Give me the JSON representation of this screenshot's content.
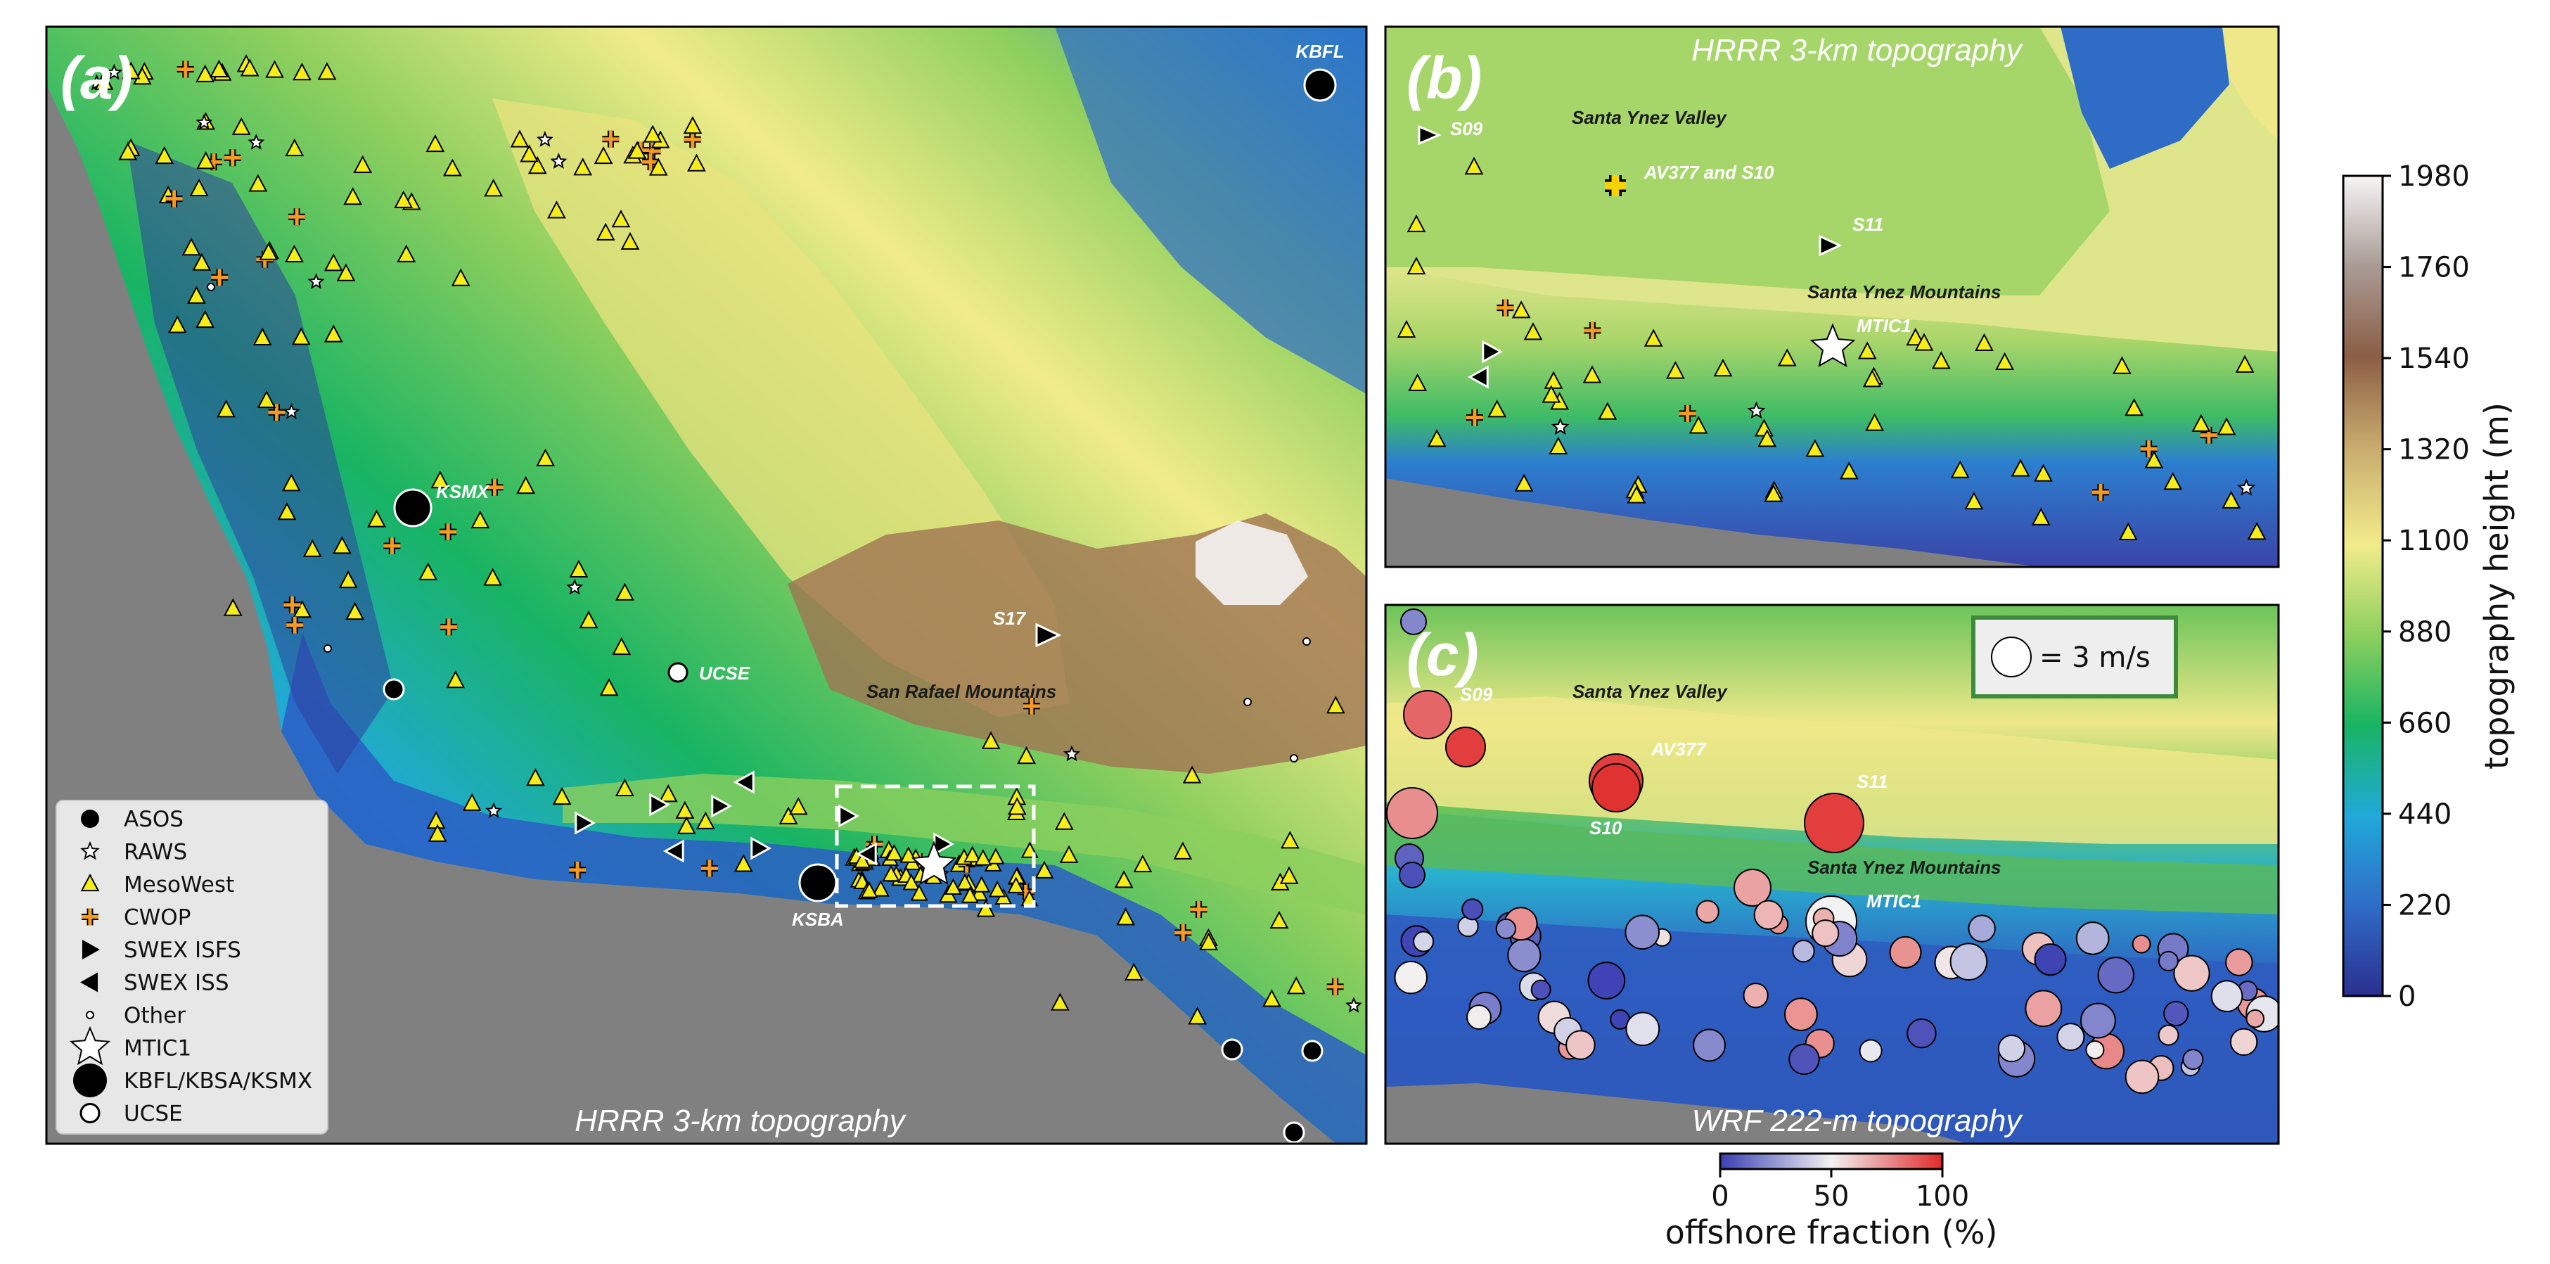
{
  "panels": {
    "a": {
      "letter": "(a)",
      "caption": "HRRR 3-km topography",
      "labels": {
        "kbfl": "KBFL",
        "ksmx": "KSMX",
        "ksba": "KSBA",
        "ucse": "UCSE",
        "s17": "S17",
        "san_rafael": "San Rafael Mountains"
      },
      "legend": [
        {
          "symbol": "circle-black",
          "label": "ASOS"
        },
        {
          "symbol": "star-small",
          "label": "RAWS"
        },
        {
          "symbol": "triangle-yellow",
          "label": "MesoWest"
        },
        {
          "symbol": "plus-orange",
          "label": "CWOP"
        },
        {
          "symbol": "triangle-right",
          "label": "SWEX ISFS"
        },
        {
          "symbol": "triangle-left",
          "label": "SWEX ISS"
        },
        {
          "symbol": "circle-small",
          "label": "Other"
        },
        {
          "symbol": "star-large",
          "label": "MTIC1"
        },
        {
          "symbol": "circle-large",
          "label": "KBFL/KBSA/KSMX"
        },
        {
          "symbol": "circle-white",
          "label": "UCSE"
        }
      ]
    },
    "b": {
      "letter": "(b)",
      "caption": "HRRR 3-km topography",
      "labels": {
        "s09": "S09",
        "valley": "Santa Ynez Valley",
        "av377_s10": "AV377 and S10",
        "s11": "S11",
        "mountains": "Santa Ynez Mountains",
        "mtic1": "MTIC1"
      }
    },
    "c": {
      "letter": "(c)",
      "caption": "WRF 222-m topography",
      "labels": {
        "s09": "S09",
        "valley": "Santa Ynez Valley",
        "av377": "AV377",
        "s10": "S10",
        "s11": "S11",
        "mountains": "Santa Ynez Mountains",
        "mtic1": "MTIC1"
      },
      "scale_legend": "= 3 m/s"
    }
  },
  "colorbars": {
    "topography": {
      "label": "topography height (m)",
      "ticks": [
        "1980",
        "1760",
        "1540",
        "1320",
        "1100",
        "880",
        "660",
        "440",
        "220",
        "0"
      ],
      "range": [
        0,
        1980
      ],
      "colors": [
        "#2b2f8f",
        "#2f6cc7",
        "#21a9d9",
        "#18b463",
        "#8dcf5e",
        "#f1ec8a",
        "#c8ab6e",
        "#8b5e45",
        "#a99b95",
        "#f7f5f5"
      ]
    },
    "offshore": {
      "label": "offshore fraction (%)",
      "ticks": [
        "0",
        "50",
        "100"
      ],
      "range": [
        0,
        100
      ],
      "colors": [
        "#3a3fb3",
        "#f2f2f2",
        "#e02a2a"
      ]
    }
  }
}
